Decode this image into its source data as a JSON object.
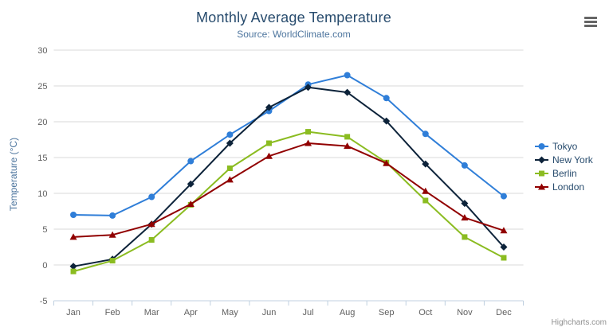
{
  "credit": "Highcharts.com",
  "chart_data": {
    "type": "line",
    "title": "Monthly Average Temperature",
    "subtitle": "Source: WorldClimate.com",
    "categories": [
      "Jan",
      "Feb",
      "Mar",
      "Apr",
      "May",
      "Jun",
      "Jul",
      "Aug",
      "Sep",
      "Oct",
      "Nov",
      "Dec"
    ],
    "xlabel": "",
    "ylabel": "Temperature (°C)",
    "ylim": [
      -5,
      30
    ],
    "yticks": [
      -5,
      0,
      5,
      10,
      15,
      20,
      25,
      30
    ],
    "grid": true,
    "legend_position": "right",
    "colors": {
      "grid_line": "#d8d8d8",
      "axis_line": "#c0d0e0",
      "tick_label": "#606060",
      "legend_text": "#274b6d",
      "title_text": "#274b6d",
      "subtitle_text": "#4d759e"
    },
    "series": [
      {
        "name": "Tokyo",
        "color": "#2f7ed8",
        "marker": "circle",
        "values": [
          7.0,
          6.9,
          9.5,
          14.5,
          18.2,
          21.5,
          25.2,
          26.5,
          23.3,
          18.3,
          13.9,
          9.6
        ]
      },
      {
        "name": "New York",
        "color": "#0d233a",
        "marker": "diamond",
        "values": [
          -0.2,
          0.8,
          5.7,
          11.3,
          17.0,
          22.0,
          24.8,
          24.1,
          20.1,
          14.1,
          8.6,
          2.5
        ]
      },
      {
        "name": "Berlin",
        "color": "#8bbc21",
        "marker": "square",
        "values": [
          -0.9,
          0.6,
          3.5,
          8.4,
          13.5,
          17.0,
          18.6,
          17.9,
          14.3,
          9.0,
          3.9,
          1.0
        ]
      },
      {
        "name": "London",
        "color": "#910000",
        "marker": "triangle",
        "values": [
          3.9,
          4.2,
          5.7,
          8.5,
          11.9,
          15.2,
          17.0,
          16.6,
          14.2,
          10.3,
          6.6,
          4.8
        ]
      }
    ]
  }
}
